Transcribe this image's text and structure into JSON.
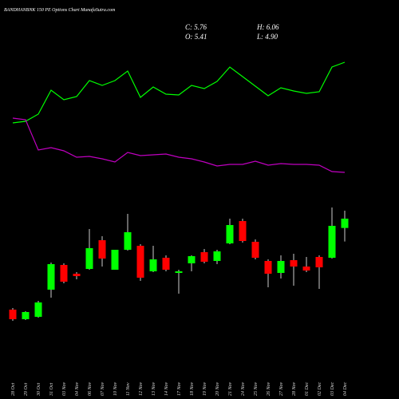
{
  "chart_data": {
    "type": "candlestick",
    "title": "BANDHANBNK 150 PE Options Chart MunafaSutra.com",
    "stats": [
      "C: 5.76",
      "H: 6.06",
      "O: 5.41",
      "L: 4.90"
    ],
    "categories": [
      "28 Oct",
      "29 Oct",
      "30 Oct",
      "31 Oct",
      "03 Nov",
      "04 Nov",
      "06 Nov",
      "07 Nov",
      "10 Nov",
      "11 Nov",
      "12 Nov",
      "13 Nov",
      "14 Nov",
      "17 Nov",
      "18 Nov",
      "19 Nov",
      "20 Nov",
      "21 Nov",
      "24 Nov",
      "25 Nov",
      "26 Nov",
      "27 Nov",
      "28 Nov",
      "01 Dec",
      "02 Dec",
      "03 Dec",
      "04 Dec"
    ],
    "open": [
      2.34,
      1.98,
      2.07,
      3.09,
      4.02,
      3.69,
      3.87,
      4.95,
      3.84,
      4.59,
      4.74,
      3.78,
      4.29,
      3.72,
      4.08,
      4.5,
      4.17,
      4.83,
      5.67,
      4.89,
      4.17,
      3.72,
      4.2,
      3.96,
      4.32,
      4.29,
      5.41
    ],
    "high": [
      2.4,
      2.28,
      2.67,
      4.11,
      4.08,
      3.75,
      5.37,
      5.1,
      4.59,
      5.94,
      4.8,
      4.74,
      4.38,
      3.84,
      4.38,
      4.62,
      4.59,
      5.76,
      5.76,
      4.98,
      4.23,
      4.38,
      4.44,
      4.32,
      4.38,
      6.18,
      6.06
    ],
    "low": [
      1.92,
      1.95,
      2.04,
      2.79,
      3.33,
      3.48,
      3.84,
      3.96,
      3.84,
      4.56,
      3.42,
      3.75,
      3.78,
      2.94,
      3.78,
      4.08,
      4.05,
      4.8,
      4.86,
      4.23,
      3.18,
      3.51,
      3.24,
      3.75,
      3.12,
      4.26,
      4.9
    ],
    "close": [
      1.98,
      2.25,
      2.61,
      4.05,
      3.39,
      3.6,
      4.65,
      4.26,
      4.59,
      5.25,
      3.54,
      4.23,
      3.84,
      3.78,
      4.35,
      4.14,
      4.53,
      5.52,
      4.92,
      4.29,
      3.69,
      4.17,
      3.96,
      3.81,
      3.93,
      5.49,
      5.76
    ],
    "up_color": "#00ff00",
    "down_color": "#ff0000",
    "ylim": [
      1.08,
      6.48
    ],
    "lines": {
      "ylim": [
        0,
        100
      ],
      "series": [
        {
          "color": "#00ff00",
          "values": [
            48,
            49,
            53.5,
            68.5,
            62.5,
            64.5,
            74.5,
            71.5,
            74.5,
            80.5,
            64,
            70.5,
            66,
            65.5,
            71.5,
            69.5,
            74,
            83,
            77,
            71,
            65,
            70,
            68,
            66.5,
            67.5,
            83,
            86
          ]
        },
        {
          "color": "#c000c0",
          "values": [
            51,
            50,
            31,
            32.5,
            30.5,
            26.5,
            27,
            25.5,
            23.5,
            29.5,
            27.5,
            28,
            28.5,
            26.5,
            25.5,
            23.5,
            21,
            22,
            22,
            24,
            21.5,
            22.5,
            22,
            22,
            21.5,
            17.5,
            17
          ]
        }
      ]
    }
  }
}
